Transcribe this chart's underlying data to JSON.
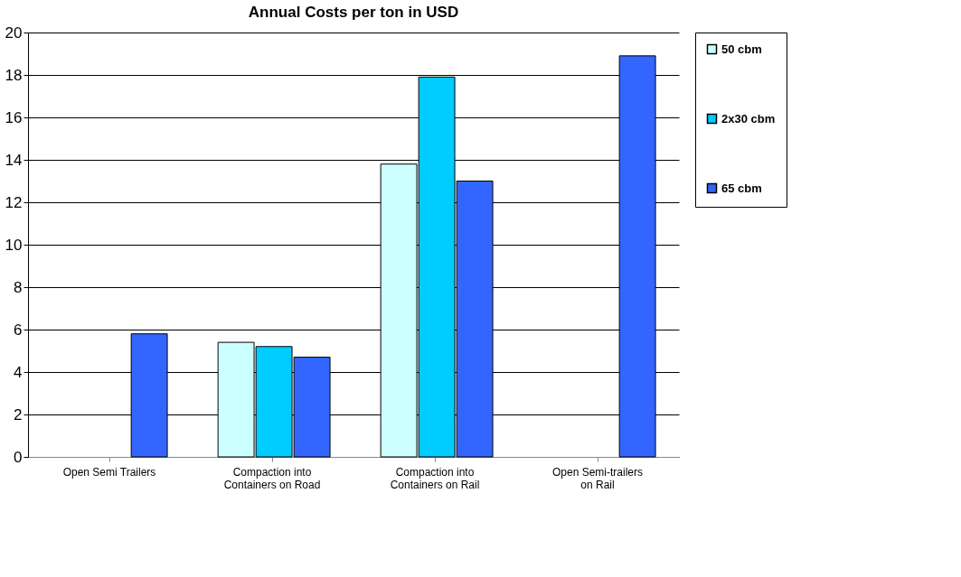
{
  "chart_data": {
    "type": "bar",
    "title": "Annual Costs per ton in USD",
    "categories": [
      "Open Semi Trailers",
      "Compaction into Containers on Road",
      "Compaction into Containers on Rail",
      "Open Semi-trailers on Rail"
    ],
    "series": [
      {
        "name": "50 cbm",
        "color": "#ccffff",
        "values": [
          null,
          5.4,
          13.8,
          null
        ]
      },
      {
        "name": "2x30 cbm",
        "color": "#00ccff",
        "values": [
          null,
          5.2,
          17.9,
          null
        ]
      },
      {
        "name": "65 cbm",
        "color": "#3366ff",
        "values": [
          5.8,
          4.7,
          13.0,
          18.9
        ]
      }
    ],
    "ylim": [
      0,
      20
    ],
    "yticks": [
      0,
      2,
      4,
      6,
      8,
      10,
      12,
      14,
      16,
      18,
      20
    ],
    "grid": "y",
    "legend": "right"
  }
}
